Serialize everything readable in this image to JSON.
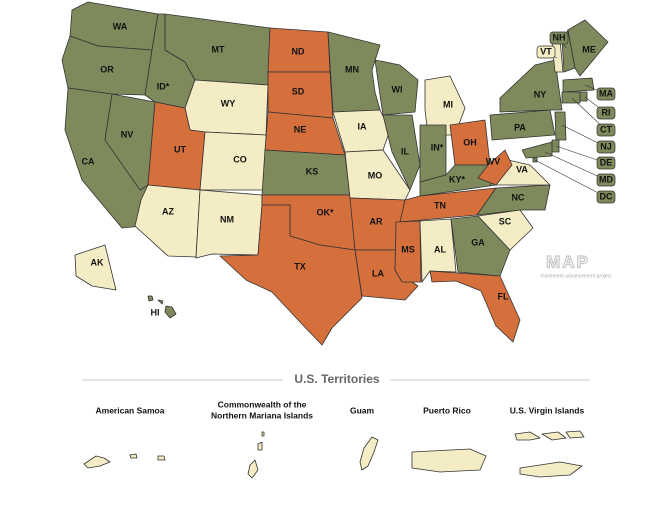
{
  "map": {
    "states": [
      {
        "label": "WA",
        "color": "#7f8a5c"
      },
      {
        "label": "OR",
        "color": "#7f8a5c"
      },
      {
        "label": "CA",
        "color": "#7f8a5c"
      },
      {
        "label": "NV",
        "color": "#7f8a5c"
      },
      {
        "label": "ID*",
        "color": "#7f8a5c"
      },
      {
        "label": "MT",
        "color": "#7f8a5c"
      },
      {
        "label": "WY",
        "color": "#f3ecc4"
      },
      {
        "label": "UT",
        "color": "#d5703d"
      },
      {
        "label": "CO",
        "color": "#f3ecc4"
      },
      {
        "label": "AZ",
        "color": "#f3ecc4"
      },
      {
        "label": "NM",
        "color": "#f3ecc4"
      },
      {
        "label": "ND",
        "color": "#d5703d"
      },
      {
        "label": "SD",
        "color": "#d5703d"
      },
      {
        "label": "NE",
        "color": "#d5703d"
      },
      {
        "label": "KS",
        "color": "#7f8a5c"
      },
      {
        "label": "OK*",
        "color": "#d5703d"
      },
      {
        "label": "TX",
        "color": "#d5703d"
      },
      {
        "label": "MN",
        "color": "#7f8a5c"
      },
      {
        "label": "IA",
        "color": "#f3ecc4"
      },
      {
        "label": "MO",
        "color": "#f3ecc4"
      },
      {
        "label": "AR",
        "color": "#d5703d"
      },
      {
        "label": "LA",
        "color": "#d5703d"
      },
      {
        "label": "WI",
        "color": "#7f8a5c"
      },
      {
        "label": "IL",
        "color": "#7f8a5c"
      },
      {
        "label": "MI",
        "color": "#f3ecc4"
      },
      {
        "label": "IN*",
        "color": "#7f8a5c"
      },
      {
        "label": "OH",
        "color": "#d5703d"
      },
      {
        "label": "KY*",
        "color": "#7f8a5c"
      },
      {
        "label": "TN",
        "color": "#d5703d"
      },
      {
        "label": "MS",
        "color": "#d5703d"
      },
      {
        "label": "AL",
        "color": "#f3ecc4"
      },
      {
        "label": "GA",
        "color": "#7f8a5c"
      },
      {
        "label": "FL",
        "color": "#d5703d"
      },
      {
        "label": "SC",
        "color": "#f3ecc4"
      },
      {
        "label": "NC",
        "color": "#7f8a5c"
      },
      {
        "label": "VA",
        "color": "#f3ecc4"
      },
      {
        "label": "WV",
        "color": "#d5703d"
      },
      {
        "label": "PA",
        "color": "#7f8a5c"
      },
      {
        "label": "NY",
        "color": "#7f8a5c"
      },
      {
        "label": "VT",
        "color": "#f3ecc4"
      },
      {
        "label": "NH",
        "color": "#7f8a5c"
      },
      {
        "label": "ME",
        "color": "#7f8a5c"
      },
      {
        "label": "MA",
        "color": "#7f8a5c"
      },
      {
        "label": "RI",
        "color": "#7f8a5c"
      },
      {
        "label": "CT",
        "color": "#7f8a5c"
      },
      {
        "label": "NJ",
        "color": "#7f8a5c"
      },
      {
        "label": "DE",
        "color": "#7f8a5c"
      },
      {
        "label": "MD",
        "color": "#7f8a5c"
      },
      {
        "label": "DC",
        "color": "#7f8a5c"
      },
      {
        "label": "AK",
        "color": "#f3ecc4"
      },
      {
        "label": "HI",
        "color": "#7f8a5c"
      }
    ],
    "logo": {
      "title": "MAP",
      "subtitle": "movement advancement project"
    },
    "territories_title": "U.S. Territories",
    "territories": [
      {
        "name": "American Samoa",
        "color": "#f3ecc4"
      },
      {
        "name": [
          "Commonwealth of the",
          "Northern Mariana Islands"
        ],
        "color": "#f3ecc4"
      },
      {
        "name": "Guam",
        "color": "#f3ecc4"
      },
      {
        "name": "Puerto Rico",
        "color": "#f3ecc4"
      },
      {
        "name": "U.S. Virgin Islands",
        "color": "#f3ecc4"
      }
    ]
  }
}
